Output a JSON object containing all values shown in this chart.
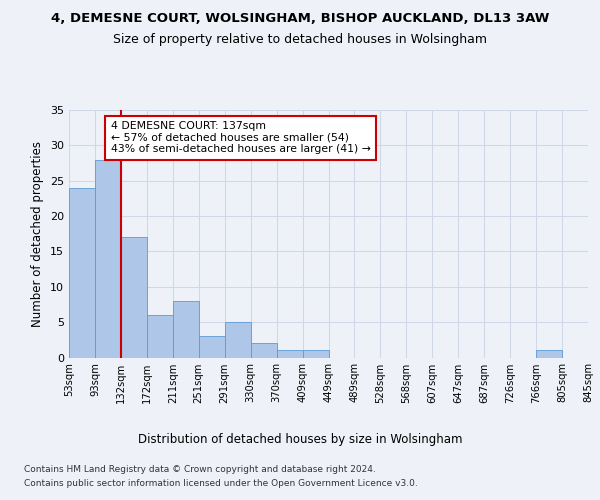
{
  "title": "4, DEMESNE COURT, WOLSINGHAM, BISHOP AUCKLAND, DL13 3AW",
  "subtitle": "Size of property relative to detached houses in Wolsingham",
  "xlabel": "Distribution of detached houses by size in Wolsingham",
  "ylabel": "Number of detached properties",
  "bar_values": [
    24,
    28,
    17,
    6,
    8,
    3,
    5,
    2,
    1,
    1,
    0,
    0,
    0,
    0,
    0,
    0,
    0,
    0,
    1,
    0
  ],
  "bin_labels": [
    "53sqm",
    "93sqm",
    "132sqm",
    "172sqm",
    "211sqm",
    "251sqm",
    "291sqm",
    "330sqm",
    "370sqm",
    "409sqm",
    "449sqm",
    "489sqm",
    "528sqm",
    "568sqm",
    "607sqm",
    "647sqm",
    "687sqm",
    "726sqm",
    "766sqm",
    "805sqm",
    "845sqm"
  ],
  "bar_color": "#aec6e8",
  "bar_edge_color": "#5b9bd5",
  "grid_color": "#d0d8e8",
  "annotation_box_text": "4 DEMESNE COURT: 137sqm\n← 57% of detached houses are smaller (54)\n43% of semi-detached houses are larger (41) →",
  "annotation_box_color": "#ffffff",
  "annotation_box_edge_color": "#cc0000",
  "annotation_line_color": "#cc0000",
  "ylim": [
    0,
    35
  ],
  "yticks": [
    0,
    5,
    10,
    15,
    20,
    25,
    30,
    35
  ],
  "footer_line1": "Contains HM Land Registry data © Crown copyright and database right 2024.",
  "footer_line2": "Contains public sector information licensed under the Open Government Licence v3.0.",
  "bg_color": "#eef2f8",
  "plot_bg_color": "#eef2f8"
}
